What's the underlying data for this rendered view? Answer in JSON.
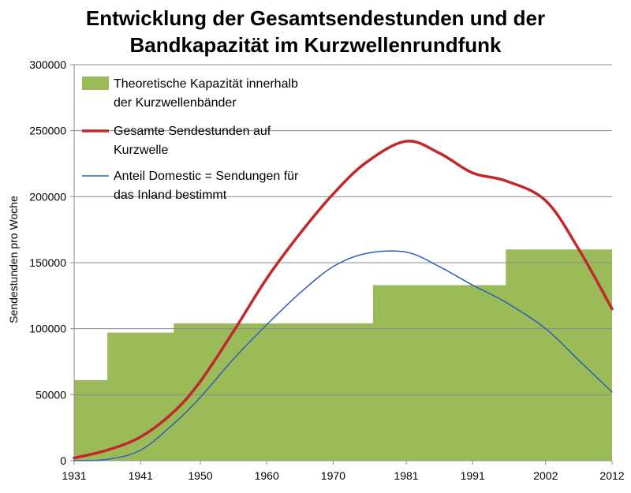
{
  "chart_data": {
    "type": "area",
    "title_lines": [
      "Entwicklung der Gesamtsendestunden und der",
      "Bandkapazität im Kurzwellenrundfunk"
    ],
    "xlabel": "",
    "ylabel": "Sendestunden pro Woche",
    "xlim": [
      1931,
      2012
    ],
    "ylim": [
      0,
      300000
    ],
    "y_ticks": [
      0,
      50000,
      100000,
      150000,
      200000,
      250000,
      300000
    ],
    "x_ticks": [
      1931,
      1941,
      1950,
      1960,
      1970,
      1981,
      1991,
      2002,
      2012
    ],
    "grid": true,
    "legend_position": "top-left",
    "series": [
      {
        "name": "Theoretische Kapazität innerhalb der Kurzwellenbänder",
        "kind": "step-area",
        "color": "#9bbb59",
        "steps": [
          {
            "from": 1931,
            "to": 1936,
            "value": 61000
          },
          {
            "from": 1936,
            "to": 1946,
            "value": 97000
          },
          {
            "from": 1946,
            "to": 1976,
            "value": 104000
          },
          {
            "from": 1976,
            "to": 1996,
            "value": 133000
          },
          {
            "from": 1996,
            "to": 2012,
            "value": 160000
          }
        ]
      },
      {
        "name": "Gesamte Sendestunden auf Kurzwelle",
        "kind": "line",
        "color": "#c0282b",
        "x": [
          1931,
          1936,
          1941,
          1946,
          1950,
          1955,
          1960,
          1965,
          1970,
          1975,
          1981,
          1986,
          1991,
          1996,
          2002,
          2007,
          2012
        ],
        "values": [
          2000,
          8000,
          18000,
          37000,
          60000,
          98000,
          138000,
          172000,
          202000,
          226000,
          242000,
          233000,
          218000,
          212000,
          197000,
          160000,
          115000
        ]
      },
      {
        "name": "Anteil Domestic = Sendungen für das Inland bestimmt",
        "kind": "line",
        "color": "#2e5fb8",
        "x": [
          1931,
          1936,
          1941,
          1946,
          1950,
          1955,
          1960,
          1965,
          1970,
          1975,
          1981,
          1986,
          1991,
          1996,
          2002,
          2007,
          2012
        ],
        "values": [
          0,
          1000,
          8000,
          28000,
          48000,
          77000,
          103000,
          127000,
          147000,
          157000,
          158000,
          147000,
          133000,
          120000,
          100000,
          76000,
          52000
        ]
      }
    ],
    "legend": [
      {
        "lines": [
          "Theoretische Kapazität innerhalb",
          "der Kurzwellenbänder"
        ]
      },
      {
        "lines": [
          "Gesamte Sendestunden auf",
          "Kurzwelle"
        ]
      },
      {
        "lines": [
          "Anteil Domestic = Sendungen für",
          "das Inland bestimmt"
        ]
      }
    ]
  }
}
